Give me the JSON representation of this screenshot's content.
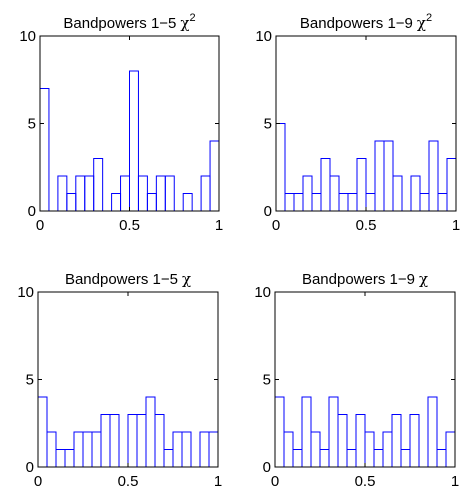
{
  "colors": {
    "axes": "#000000",
    "histogram": "#0000ff",
    "background": "#ffffff"
  },
  "chart_data": [
    {
      "type": "histogram",
      "title": "Bandpowers 1−5",
      "title_symbol": "χ",
      "title_superscript": "2",
      "x_ticks": [
        "0",
        "0.5",
        "1"
      ],
      "y_ticks": [
        "0",
        "5",
        "10"
      ],
      "xlim": [
        0,
        1
      ],
      "ylim": [
        0,
        10
      ],
      "bin_width": 0.05,
      "values": [
        7,
        0,
        2,
        1,
        2,
        2,
        3,
        0,
        1,
        2,
        8,
        2,
        1,
        2,
        2,
        0,
        1,
        0,
        2,
        4
      ]
    },
    {
      "type": "histogram",
      "title": "Bandpowers 1−9",
      "title_symbol": "χ",
      "title_superscript": "2",
      "x_ticks": [
        "0",
        "0.5",
        "1"
      ],
      "y_ticks": [
        "0",
        "5",
        "10"
      ],
      "xlim": [
        0,
        1
      ],
      "ylim": [
        0,
        10
      ],
      "bin_width": 0.05,
      "values": [
        5,
        1,
        1,
        2,
        1,
        3,
        2,
        1,
        1,
        3,
        1,
        4,
        4,
        2,
        0,
        2,
        1,
        4,
        1,
        3
      ]
    },
    {
      "type": "histogram",
      "title": "Bandpowers 1−5",
      "title_symbol": "χ",
      "title_superscript": "",
      "x_ticks": [
        "0",
        "0.5",
        "1"
      ],
      "y_ticks": [
        "0",
        "5",
        "10"
      ],
      "xlim": [
        0,
        1
      ],
      "ylim": [
        0,
        10
      ],
      "bin_width": 0.05,
      "values": [
        4,
        2,
        1,
        1,
        2,
        2,
        2,
        3,
        3,
        0,
        3,
        3,
        4,
        3,
        1,
        2,
        2,
        0,
        2,
        2
      ]
    },
    {
      "type": "histogram",
      "title": "Bandpowers 1−9",
      "title_symbol": "χ",
      "title_superscript": "",
      "x_ticks": [
        "0",
        "0.5",
        "1"
      ],
      "y_ticks": [
        "0",
        "5",
        "10"
      ],
      "xlim": [
        0,
        1
      ],
      "ylim": [
        0,
        10
      ],
      "bin_width": 0.05,
      "values": [
        4,
        2,
        1,
        4,
        2,
        1,
        4,
        3,
        1,
        3,
        2,
        1,
        2,
        3,
        1,
        3,
        0,
        4,
        1,
        2
      ]
    }
  ]
}
